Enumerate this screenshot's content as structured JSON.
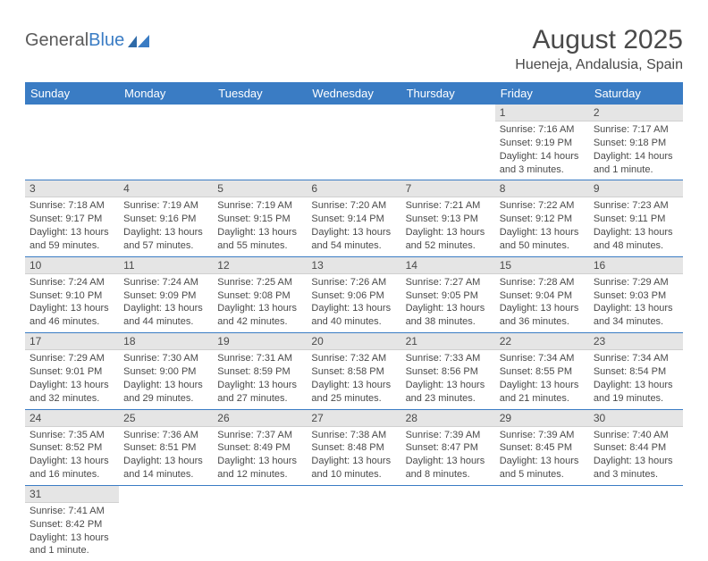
{
  "logo": {
    "text1": "General",
    "text2": "Blue"
  },
  "title": "August 2025",
  "location": "Hueneja, Andalusia, Spain",
  "colors": {
    "header_bg": "#3a7cc4",
    "header_text": "#ffffff",
    "daynum_bg": "#e5e5e5",
    "text": "#4a4a4a",
    "border": "#3a7cc4"
  },
  "weekdays": [
    "Sunday",
    "Monday",
    "Tuesday",
    "Wednesday",
    "Thursday",
    "Friday",
    "Saturday"
  ],
  "weeks": [
    [
      null,
      null,
      null,
      null,
      null,
      {
        "n": "1",
        "sunrise": "Sunrise: 7:16 AM",
        "sunset": "Sunset: 9:19 PM",
        "daylight": "Daylight: 14 hours and 3 minutes."
      },
      {
        "n": "2",
        "sunrise": "Sunrise: 7:17 AM",
        "sunset": "Sunset: 9:18 PM",
        "daylight": "Daylight: 14 hours and 1 minute."
      }
    ],
    [
      {
        "n": "3",
        "sunrise": "Sunrise: 7:18 AM",
        "sunset": "Sunset: 9:17 PM",
        "daylight": "Daylight: 13 hours and 59 minutes."
      },
      {
        "n": "4",
        "sunrise": "Sunrise: 7:19 AM",
        "sunset": "Sunset: 9:16 PM",
        "daylight": "Daylight: 13 hours and 57 minutes."
      },
      {
        "n": "5",
        "sunrise": "Sunrise: 7:19 AM",
        "sunset": "Sunset: 9:15 PM",
        "daylight": "Daylight: 13 hours and 55 minutes."
      },
      {
        "n": "6",
        "sunrise": "Sunrise: 7:20 AM",
        "sunset": "Sunset: 9:14 PM",
        "daylight": "Daylight: 13 hours and 54 minutes."
      },
      {
        "n": "7",
        "sunrise": "Sunrise: 7:21 AM",
        "sunset": "Sunset: 9:13 PM",
        "daylight": "Daylight: 13 hours and 52 minutes."
      },
      {
        "n": "8",
        "sunrise": "Sunrise: 7:22 AM",
        "sunset": "Sunset: 9:12 PM",
        "daylight": "Daylight: 13 hours and 50 minutes."
      },
      {
        "n": "9",
        "sunrise": "Sunrise: 7:23 AM",
        "sunset": "Sunset: 9:11 PM",
        "daylight": "Daylight: 13 hours and 48 minutes."
      }
    ],
    [
      {
        "n": "10",
        "sunrise": "Sunrise: 7:24 AM",
        "sunset": "Sunset: 9:10 PM",
        "daylight": "Daylight: 13 hours and 46 minutes."
      },
      {
        "n": "11",
        "sunrise": "Sunrise: 7:24 AM",
        "sunset": "Sunset: 9:09 PM",
        "daylight": "Daylight: 13 hours and 44 minutes."
      },
      {
        "n": "12",
        "sunrise": "Sunrise: 7:25 AM",
        "sunset": "Sunset: 9:08 PM",
        "daylight": "Daylight: 13 hours and 42 minutes."
      },
      {
        "n": "13",
        "sunrise": "Sunrise: 7:26 AM",
        "sunset": "Sunset: 9:06 PM",
        "daylight": "Daylight: 13 hours and 40 minutes."
      },
      {
        "n": "14",
        "sunrise": "Sunrise: 7:27 AM",
        "sunset": "Sunset: 9:05 PM",
        "daylight": "Daylight: 13 hours and 38 minutes."
      },
      {
        "n": "15",
        "sunrise": "Sunrise: 7:28 AM",
        "sunset": "Sunset: 9:04 PM",
        "daylight": "Daylight: 13 hours and 36 minutes."
      },
      {
        "n": "16",
        "sunrise": "Sunrise: 7:29 AM",
        "sunset": "Sunset: 9:03 PM",
        "daylight": "Daylight: 13 hours and 34 minutes."
      }
    ],
    [
      {
        "n": "17",
        "sunrise": "Sunrise: 7:29 AM",
        "sunset": "Sunset: 9:01 PM",
        "daylight": "Daylight: 13 hours and 32 minutes."
      },
      {
        "n": "18",
        "sunrise": "Sunrise: 7:30 AM",
        "sunset": "Sunset: 9:00 PM",
        "daylight": "Daylight: 13 hours and 29 minutes."
      },
      {
        "n": "19",
        "sunrise": "Sunrise: 7:31 AM",
        "sunset": "Sunset: 8:59 PM",
        "daylight": "Daylight: 13 hours and 27 minutes."
      },
      {
        "n": "20",
        "sunrise": "Sunrise: 7:32 AM",
        "sunset": "Sunset: 8:58 PM",
        "daylight": "Daylight: 13 hours and 25 minutes."
      },
      {
        "n": "21",
        "sunrise": "Sunrise: 7:33 AM",
        "sunset": "Sunset: 8:56 PM",
        "daylight": "Daylight: 13 hours and 23 minutes."
      },
      {
        "n": "22",
        "sunrise": "Sunrise: 7:34 AM",
        "sunset": "Sunset: 8:55 PM",
        "daylight": "Daylight: 13 hours and 21 minutes."
      },
      {
        "n": "23",
        "sunrise": "Sunrise: 7:34 AM",
        "sunset": "Sunset: 8:54 PM",
        "daylight": "Daylight: 13 hours and 19 minutes."
      }
    ],
    [
      {
        "n": "24",
        "sunrise": "Sunrise: 7:35 AM",
        "sunset": "Sunset: 8:52 PM",
        "daylight": "Daylight: 13 hours and 16 minutes."
      },
      {
        "n": "25",
        "sunrise": "Sunrise: 7:36 AM",
        "sunset": "Sunset: 8:51 PM",
        "daylight": "Daylight: 13 hours and 14 minutes."
      },
      {
        "n": "26",
        "sunrise": "Sunrise: 7:37 AM",
        "sunset": "Sunset: 8:49 PM",
        "daylight": "Daylight: 13 hours and 12 minutes."
      },
      {
        "n": "27",
        "sunrise": "Sunrise: 7:38 AM",
        "sunset": "Sunset: 8:48 PM",
        "daylight": "Daylight: 13 hours and 10 minutes."
      },
      {
        "n": "28",
        "sunrise": "Sunrise: 7:39 AM",
        "sunset": "Sunset: 8:47 PM",
        "daylight": "Daylight: 13 hours and 8 minutes."
      },
      {
        "n": "29",
        "sunrise": "Sunrise: 7:39 AM",
        "sunset": "Sunset: 8:45 PM",
        "daylight": "Daylight: 13 hours and 5 minutes."
      },
      {
        "n": "30",
        "sunrise": "Sunrise: 7:40 AM",
        "sunset": "Sunset: 8:44 PM",
        "daylight": "Daylight: 13 hours and 3 minutes."
      }
    ],
    [
      {
        "n": "31",
        "sunrise": "Sunrise: 7:41 AM",
        "sunset": "Sunset: 8:42 PM",
        "daylight": "Daylight: 13 hours and 1 minute."
      },
      null,
      null,
      null,
      null,
      null,
      null
    ]
  ]
}
